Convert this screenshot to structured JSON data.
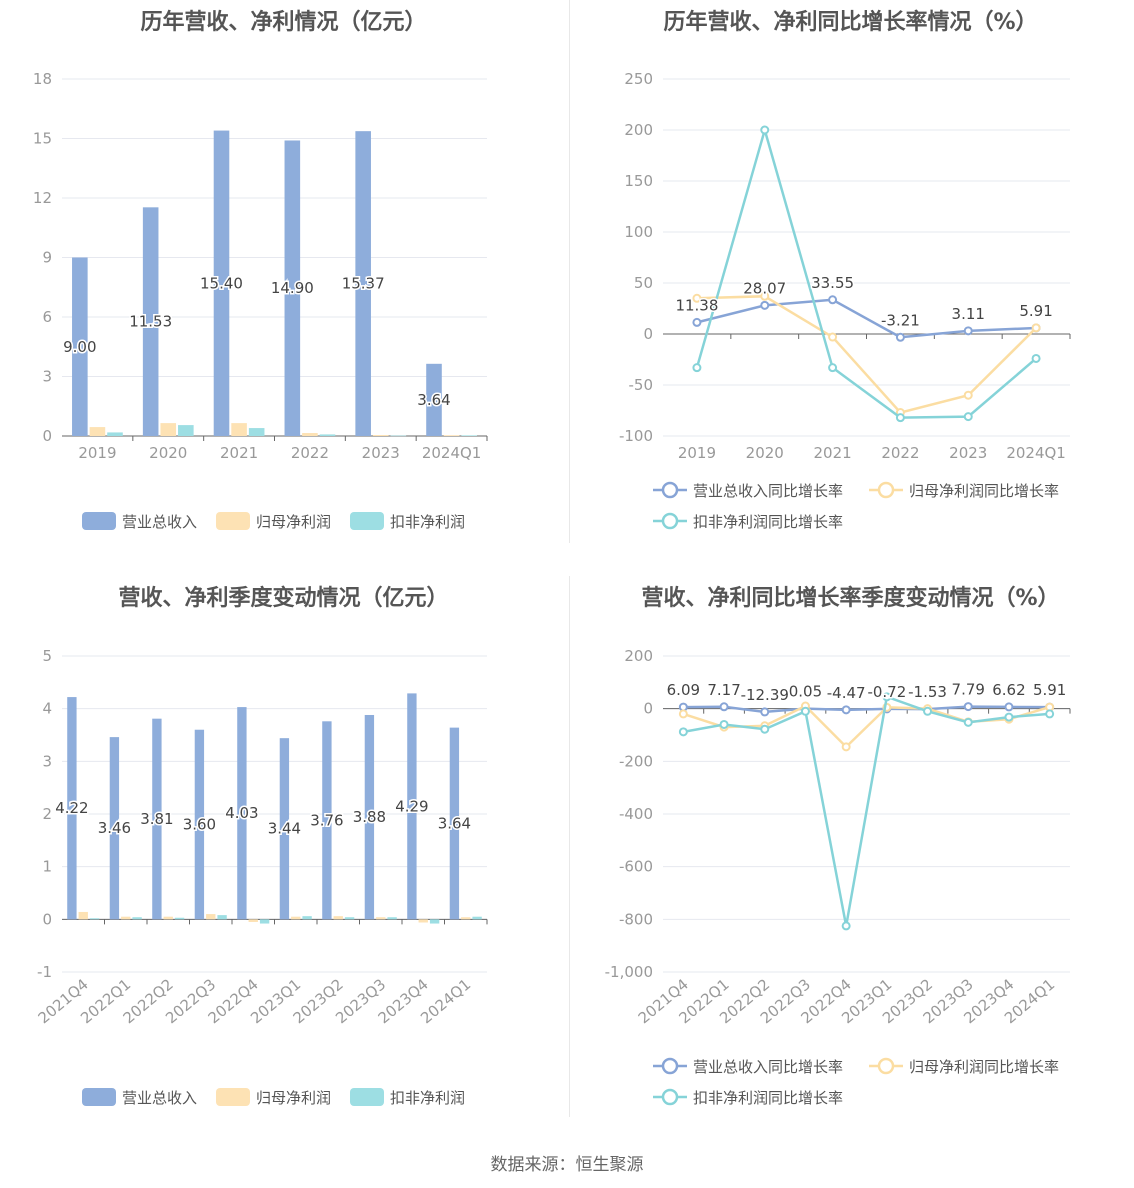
{
  "source": "数据来源：恒生聚源",
  "colors": {
    "revenue": "#8EADDB",
    "net_profit": "#FDE2B4",
    "deducted_profit": "#9DDEE3",
    "revenue_line": "#87A4D6",
    "net_line": "#FBDDA2",
    "deducted_line": "#85D3D8"
  },
  "chart_data": [
    {
      "type": "bar",
      "title": "历年营收、净利情况（亿元）",
      "categories": [
        "2019",
        "2020",
        "2021",
        "2022",
        "2023",
        "2024Q1"
      ],
      "ylim": [
        0,
        18
      ],
      "yticks": [
        "0",
        "3",
        "6",
        "9",
        "12",
        "15",
        "18"
      ],
      "series": [
        {
          "name": "营业总收入",
          "values": [
            9.0,
            11.53,
            15.4,
            14.9,
            15.37,
            3.64
          ],
          "labels": [
            "9.00",
            "11.53",
            "15.40",
            "14.90",
            "15.37",
            "3.64"
          ]
        },
        {
          "name": "归母净利润",
          "values": [
            0.45,
            0.65,
            0.65,
            0.15,
            0.05,
            0.04
          ]
        },
        {
          "name": "扣非净利润",
          "values": [
            0.18,
            0.55,
            0.4,
            0.08,
            0.02,
            0.03
          ]
        }
      ],
      "legend": "bottom"
    },
    {
      "type": "line",
      "title": "历年营收、净利同比增长率情况（%）",
      "categories": [
        "2019",
        "2020",
        "2021",
        "2022",
        "2023",
        "2024Q1"
      ],
      "ylim": [
        -100,
        250
      ],
      "yticks": [
        "-100",
        "-50",
        "0",
        "50",
        "100",
        "150",
        "200",
        "250"
      ],
      "series": [
        {
          "name": "营业总收入同比增长率",
          "values": [
            11.38,
            28.07,
            33.55,
            -3.21,
            3.11,
            5.91
          ],
          "labels": [
            "11.38",
            "28.07",
            "33.55",
            "-3.21",
            "3.11",
            "5.91"
          ]
        },
        {
          "name": "归母净利润同比增长率",
          "values": [
            35,
            37,
            -3,
            -77,
            -60,
            6
          ]
        },
        {
          "name": "扣非净利润同比增长率",
          "values": [
            -33,
            200,
            -33,
            -82,
            -81,
            -24
          ]
        }
      ],
      "legend": "bottom"
    },
    {
      "type": "bar",
      "title": "营收、净利季度变动情况（亿元）",
      "categories": [
        "2021Q4",
        "2022Q1",
        "2022Q2",
        "2022Q3",
        "2022Q4",
        "2023Q1",
        "2023Q2",
        "2023Q3",
        "2023Q4",
        "2024Q1"
      ],
      "ylim": [
        -1,
        5
      ],
      "yticks": [
        "-1",
        "0",
        "1",
        "2",
        "3",
        "4",
        "5"
      ],
      "series": [
        {
          "name": "营业总收入",
          "values": [
            4.22,
            3.46,
            3.81,
            3.6,
            4.03,
            3.44,
            3.76,
            3.88,
            4.29,
            3.64
          ],
          "labels": [
            "4.22",
            "3.46",
            "3.81",
            "3.60",
            "4.03",
            "3.44",
            "3.76",
            "3.88",
            "4.29",
            "3.64"
          ]
        },
        {
          "name": "归母净利润",
          "values": [
            0.14,
            0.05,
            0.05,
            0.1,
            -0.05,
            0.05,
            0.06,
            0.04,
            -0.06,
            0.04
          ]
        },
        {
          "name": "扣非净利润",
          "values": [
            0.02,
            0.04,
            0.03,
            0.08,
            -0.08,
            0.06,
            0.04,
            0.04,
            -0.08,
            0.05
          ]
        }
      ],
      "legend": "bottom"
    },
    {
      "type": "line",
      "title": "营收、净利同比增长率季度变动情况（%）",
      "categories": [
        "2021Q4",
        "2022Q1",
        "2022Q2",
        "2022Q3",
        "2022Q4",
        "2023Q1",
        "2023Q2",
        "2023Q3",
        "2023Q4",
        "2024Q1"
      ],
      "ylim": [
        -1000,
        200
      ],
      "yticks": [
        "-1,000",
        "-800",
        "-600",
        "-400",
        "-200",
        "0",
        "200"
      ],
      "series": [
        {
          "name": "营业总收入同比增长率",
          "values": [
            6.09,
            7.17,
            -12.39,
            0.05,
            -4.47,
            -0.72,
            -1.53,
            7.79,
            6.62,
            5.91
          ],
          "labels": [
            "6.09",
            "7.17",
            "-12.39",
            "0.05",
            "-4.47",
            "-0.72",
            "-1.53",
            "7.79",
            "6.62",
            "5.91"
          ]
        },
        {
          "name": "归母净利润同比增长率",
          "values": [
            -20,
            -70,
            -65,
            10,
            -145,
            5,
            0,
            -50,
            -40,
            6
          ]
        },
        {
          "name": "扣非净利润同比增长率",
          "values": [
            -88,
            -60,
            -78,
            -10,
            -825,
            45,
            -10,
            -52,
            -32,
            -20
          ]
        }
      ],
      "legend": "bottom"
    }
  ]
}
